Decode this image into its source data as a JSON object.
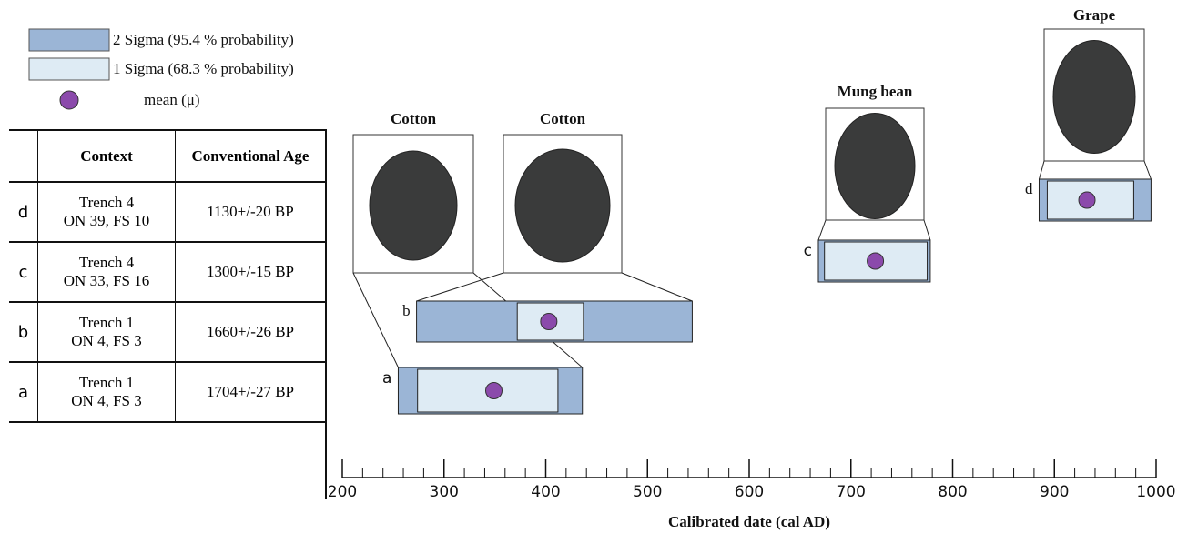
{
  "chart_data": {
    "type": "interval",
    "xlabel": "Calibrated date (cal AD)",
    "xlim": [
      200,
      1000
    ],
    "xticks": [
      200,
      300,
      400,
      500,
      600,
      700,
      800,
      900,
      1000
    ],
    "xminorticks": [
      220,
      240,
      260,
      280,
      320,
      340,
      360,
      380,
      420,
      440,
      460,
      480,
      520,
      540,
      560,
      580,
      620,
      640,
      660,
      680,
      720,
      740,
      760,
      780,
      820,
      840,
      860,
      880,
      920,
      940,
      960,
      980
    ],
    "legend": {
      "two_sigma": {
        "label": "2 Sigma (95.4 % probability)",
        "color": "#9bb5d6"
      },
      "one_sigma": {
        "label": "1 Sigma (68.3 % probability)",
        "color": "#deebf4"
      },
      "mean": {
        "label": "mean (μ)",
        "color": "#8b4aab"
      }
    },
    "samples": [
      {
        "id": "a",
        "image_label": "Cotton",
        "two_sigma": [
          255,
          436
        ],
        "one_sigma": [
          274,
          412
        ],
        "mean": 349
      },
      {
        "id": "b",
        "image_label": "Cotton",
        "two_sigma": [
          273,
          544
        ],
        "one_sigma": [
          372,
          437
        ],
        "mean": 403
      },
      {
        "id": "c",
        "image_label": "Mung bean",
        "two_sigma": [
          668,
          778
        ],
        "one_sigma": [
          674,
          775
        ],
        "mean": 724
      },
      {
        "id": "d",
        "image_label": "Grape",
        "two_sigma": [
          885,
          995
        ],
        "one_sigma": [
          893,
          978
        ],
        "mean": 932
      }
    ]
  },
  "table": {
    "headers": [
      "Context",
      "Conventional Age"
    ],
    "rows": [
      [
        "d",
        [
          "Trench 4",
          "ON 39, FS 10"
        ],
        "1130+/-20 BP"
      ],
      [
        "c",
        [
          "Trench 4",
          "ON 33, FS 16"
        ],
        "1300+/-15 BP"
      ],
      [
        "b",
        [
          "Trench 1",
          "ON 4, FS 3"
        ],
        "1660+/-26 BP"
      ],
      [
        "a",
        [
          "Trench 1",
          "ON 4, FS 3"
        ],
        "1704+/-27 BP"
      ]
    ]
  }
}
